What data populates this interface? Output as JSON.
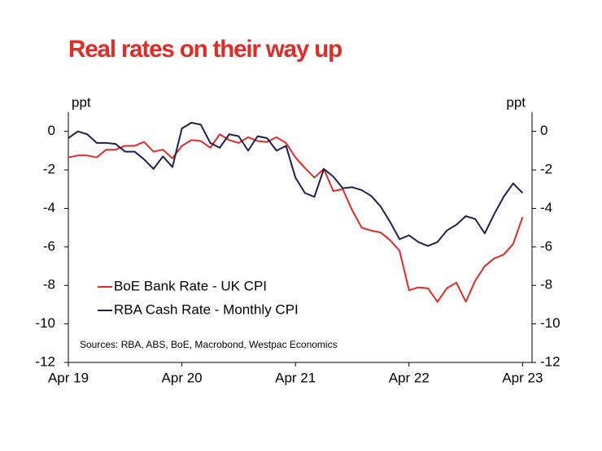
{
  "chart_data": {
    "type": "line",
    "title": "Real rates on their way up",
    "y_label": "ppt",
    "y2_label": "ppt",
    "source": "Sources: RBA, ABS, BoE, Macrobond, Westpac Economics",
    "x": [
      0,
      1,
      2,
      3,
      4,
      5,
      6,
      7,
      8,
      9,
      10,
      11,
      12,
      13,
      14,
      15,
      16,
      17,
      18,
      19,
      20,
      21,
      22,
      23,
      24,
      25,
      26,
      27,
      28,
      29,
      30,
      31,
      32,
      33,
      34,
      35,
      36,
      37,
      38,
      39,
      40,
      41,
      42,
      43,
      44,
      45,
      46,
      47,
      48
    ],
    "xlim": [
      0,
      49
    ],
    "xticks": [
      {
        "value": 0,
        "label": "Apr 19"
      },
      {
        "value": 12,
        "label": "Apr 20"
      },
      {
        "value": 24,
        "label": "Apr 21"
      },
      {
        "value": 36,
        "label": "Apr 22"
      },
      {
        "value": 48,
        "label": "Apr 23"
      }
    ],
    "ylim": [
      -12,
      1
    ],
    "yticks": [
      0,
      -2,
      -4,
      -6,
      -8,
      -10,
      -12
    ],
    "y2lim": [
      -12,
      1
    ],
    "y2ticks": [
      0,
      -2,
      -4,
      -6,
      -8,
      -10,
      -12
    ],
    "legend": "lower-left",
    "series": [
      {
        "name": "BoE Bank Rate - UK CPI",
        "color": "#e02b26",
        "values": [
          -1.35,
          -1.25,
          -1.25,
          -1.35,
          -0.95,
          -0.95,
          -0.75,
          -0.75,
          -0.55,
          -1.05,
          -0.95,
          -1.4,
          -0.75,
          -0.45,
          -0.5,
          -0.85,
          -0.15,
          -0.45,
          -0.6,
          -0.3,
          -0.5,
          -0.55,
          -0.3,
          -0.6,
          -1.35,
          -1.9,
          -2.4,
          -1.95,
          -3.1,
          -3.0,
          -4.1,
          -5.0,
          -5.15,
          -5.25,
          -5.65,
          -6.2,
          -8.25,
          -8.1,
          -8.15,
          -8.85,
          -8.15,
          -7.85,
          -8.85,
          -7.75,
          -7.0,
          -6.6,
          -6.4,
          -5.85,
          -4.45
        ]
      },
      {
        "name": "RBA Cash Rate - Monthly CPI",
        "color": "#1e2050",
        "values": [
          -0.35,
          0.0,
          -0.15,
          -0.6,
          -0.6,
          -0.65,
          -1.05,
          -1.05,
          -1.45,
          -1.95,
          -1.3,
          -1.85,
          0.15,
          0.45,
          0.35,
          -0.6,
          -0.85,
          -0.15,
          -0.25,
          -1.0,
          -0.25,
          -0.35,
          -1.0,
          -0.75,
          -2.4,
          -3.2,
          -3.4,
          -1.95,
          -2.35,
          -2.95,
          -2.9,
          -3.05,
          -3.35,
          -3.9,
          -4.7,
          -5.6,
          -5.4,
          -5.75,
          -5.95,
          -5.75,
          -5.15,
          -4.85,
          -4.4,
          -4.55,
          -5.3,
          -4.3,
          -3.4,
          -2.7,
          -3.2
        ]
      }
    ]
  }
}
